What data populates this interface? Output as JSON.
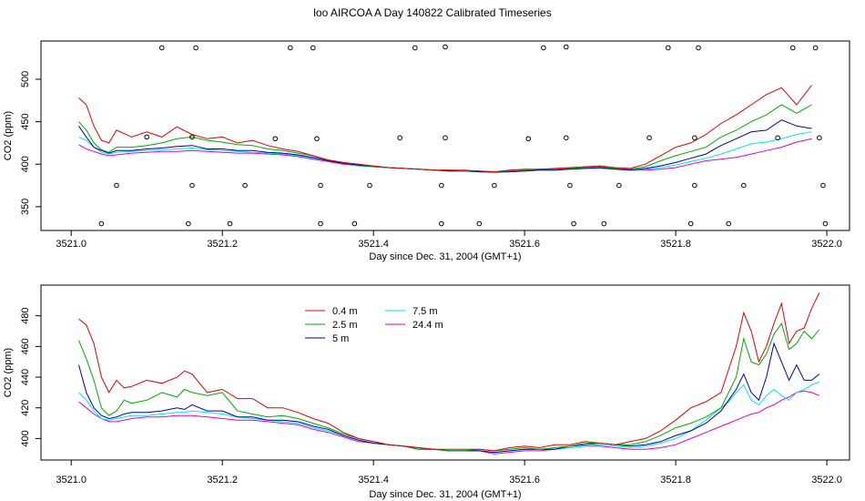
{
  "figure": {
    "title": "loo AIRCOA A  Day 140822  Calibrated Timeseries"
  },
  "colors": {
    "0.4 m": "#dd0000",
    "2.5 m": "#00aa00",
    "5 m": "#0000aa",
    "7.5 m": "#00e5ee",
    "24.4 m": "#dd00dd"
  },
  "chart_data": [
    {
      "type": "line",
      "xlabel": "Day since Dec. 31, 2004 (GMT+1)",
      "ylabel": "CO2 (ppm)",
      "xlim": [
        3520.96,
        3522.03
      ],
      "ylim": [
        322,
        545
      ],
      "x_ticks": [
        3521.0,
        3521.2,
        3521.4,
        3521.6,
        3521.8,
        3522.0
      ],
      "x_tick_labels": [
        "3521.0",
        "3521.2",
        "3521.4",
        "3521.6",
        "3521.8",
        "3522.0"
      ],
      "y_ticks": [
        350,
        400,
        450,
        500
      ],
      "y_tick_labels": [
        "350",
        "400",
        "450",
        "500"
      ],
      "legend": "none",
      "grid": false,
      "markers_open_circles": [
        [
          3521.04,
          330
        ],
        [
          3521.06,
          375
        ],
        [
          3521.1,
          432
        ],
        [
          3521.12,
          537
        ],
        [
          3521.155,
          330
        ],
        [
          3521.16,
          375
        ],
        [
          3521.16,
          432
        ],
        [
          3521.165,
          537
        ],
        [
          3521.21,
          330
        ],
        [
          3521.23,
          375
        ],
        [
          3521.27,
          430
        ],
        [
          3521.29,
          537
        ],
        [
          3521.32,
          537
        ],
        [
          3521.325,
          430
        ],
        [
          3521.33,
          375
        ],
        [
          3521.33,
          330
        ],
        [
          3521.375,
          330
        ],
        [
          3521.395,
          375
        ],
        [
          3521.435,
          431
        ],
        [
          3521.455,
          537
        ],
        [
          3521.49,
          330
        ],
        [
          3521.49,
          375
        ],
        [
          3521.495,
          431
        ],
        [
          3521.495,
          538
        ],
        [
          3521.54,
          330
        ],
        [
          3521.56,
          375
        ],
        [
          3521.605,
          430
        ],
        [
          3521.625,
          537
        ],
        [
          3521.655,
          538
        ],
        [
          3521.655,
          431
        ],
        [
          3521.66,
          375
        ],
        [
          3521.665,
          330
        ],
        [
          3521.705,
          330
        ],
        [
          3521.725,
          375
        ],
        [
          3521.765,
          431
        ],
        [
          3521.79,
          537
        ],
        [
          3521.82,
          330
        ],
        [
          3521.825,
          375
        ],
        [
          3521.825,
          431
        ],
        [
          3521.83,
          537
        ],
        [
          3521.87,
          330
        ],
        [
          3521.89,
          375
        ],
        [
          3521.935,
          431
        ],
        [
          3521.955,
          537
        ],
        [
          3521.985,
          537
        ],
        [
          3521.99,
          431
        ],
        [
          3521.995,
          375
        ],
        [
          3521.998,
          330
        ]
      ],
      "x": [
        3521.01,
        3521.02,
        3521.03,
        3521.04,
        3521.05,
        3521.06,
        3521.08,
        3521.1,
        3521.12,
        3521.14,
        3521.16,
        3521.18,
        3521.2,
        3521.22,
        3521.24,
        3521.26,
        3521.28,
        3521.3,
        3521.32,
        3521.34,
        3521.36,
        3521.38,
        3521.4,
        3521.42,
        3521.44,
        3521.46,
        3521.48,
        3521.5,
        3521.52,
        3521.54,
        3521.56,
        3521.58,
        3521.6,
        3521.62,
        3521.64,
        3521.66,
        3521.68,
        3521.7,
        3521.72,
        3521.74,
        3521.76,
        3521.78,
        3521.8,
        3521.82,
        3521.84,
        3521.86,
        3521.88,
        3521.9,
        3521.92,
        3521.94,
        3521.96,
        3521.98
      ],
      "series": [
        {
          "name": "0.4 m",
          "values": [
            478,
            470,
            445,
            428,
            425,
            440,
            432,
            438,
            432,
            444,
            435,
            430,
            432,
            425,
            428,
            422,
            418,
            415,
            410,
            405,
            402,
            400,
            398,
            396,
            395,
            394,
            393,
            393,
            393,
            392,
            391,
            393,
            394,
            394,
            395,
            396,
            397,
            398,
            396,
            395,
            400,
            410,
            420,
            425,
            435,
            448,
            458,
            470,
            482,
            490,
            470,
            493
          ]
        },
        {
          "name": "2.5 m",
          "values": [
            450,
            440,
            425,
            417,
            414,
            420,
            420,
            422,
            425,
            430,
            432,
            428,
            426,
            423,
            422,
            418,
            416,
            413,
            410,
            405,
            402,
            400,
            397,
            396,
            395,
            394,
            393,
            393,
            392,
            392,
            391,
            392,
            393,
            394,
            394,
            395,
            396,
            397,
            395,
            394,
            397,
            404,
            410,
            415,
            420,
            432,
            440,
            450,
            458,
            470,
            460,
            470
          ]
        },
        {
          "name": "5 m",
          "values": [
            445,
            432,
            420,
            416,
            413,
            416,
            416,
            418,
            419,
            421,
            422,
            418,
            418,
            416,
            416,
            414,
            413,
            411,
            408,
            404,
            401,
            399,
            397,
            396,
            395,
            394,
            393,
            392,
            392,
            391,
            391,
            391,
            392,
            393,
            393,
            394,
            395,
            396,
            394,
            393,
            395,
            398,
            402,
            407,
            412,
            422,
            430,
            438,
            440,
            452,
            445,
            442
          ]
        },
        {
          "name": "7.5 m",
          "values": [
            432,
            428,
            420,
            414,
            412,
            414,
            415,
            416,
            417,
            418,
            419,
            417,
            416,
            415,
            414,
            413,
            412,
            410,
            407,
            404,
            401,
            398,
            397,
            396,
            395,
            394,
            393,
            392,
            392,
            391,
            390,
            391,
            392,
            393,
            393,
            394,
            395,
            395,
            394,
            393,
            394,
            396,
            399,
            403,
            407,
            412,
            418,
            424,
            426,
            430,
            435,
            438
          ]
        },
        {
          "name": "24.4 m",
          "values": [
            423,
            418,
            415,
            412,
            410,
            411,
            413,
            414,
            415,
            415,
            416,
            415,
            414,
            413,
            413,
            412,
            411,
            409,
            406,
            403,
            400,
            398,
            397,
            396,
            395,
            394,
            393,
            392,
            392,
            391,
            390,
            391,
            392,
            393,
            393,
            394,
            395,
            395,
            394,
            393,
            393,
            394,
            396,
            400,
            404,
            406,
            408,
            412,
            416,
            420,
            426,
            430
          ]
        }
      ]
    },
    {
      "type": "line",
      "xlabel": "Day since Dec. 31, 2004 (GMT+1)",
      "ylabel": "CO2 (ppm)",
      "xlim": [
        3520.96,
        3522.03
      ],
      "ylim": [
        386,
        500
      ],
      "x_ticks": [
        3521.0,
        3521.2,
        3521.4,
        3521.6,
        3521.8,
        3522.0
      ],
      "x_tick_labels": [
        "3521.0",
        "3521.2",
        "3521.4",
        "3521.6",
        "3521.8",
        "3522.0"
      ],
      "y_ticks": [
        400,
        420,
        440,
        460,
        480
      ],
      "y_tick_labels": [
        "400",
        "420",
        "440",
        "460",
        "480"
      ],
      "legend": "top-left",
      "grid": false,
      "x": [
        3521.01,
        3521.02,
        3521.03,
        3521.04,
        3521.05,
        3521.06,
        3521.07,
        3521.08,
        3521.1,
        3521.12,
        3521.14,
        3521.15,
        3521.16,
        3521.18,
        3521.2,
        3521.22,
        3521.24,
        3521.26,
        3521.28,
        3521.3,
        3521.32,
        3521.34,
        3521.36,
        3521.38,
        3521.4,
        3521.42,
        3521.44,
        3521.46,
        3521.48,
        3521.5,
        3521.52,
        3521.54,
        3521.56,
        3521.58,
        3521.6,
        3521.62,
        3521.64,
        3521.66,
        3521.68,
        3521.7,
        3521.72,
        3521.74,
        3521.76,
        3521.78,
        3521.8,
        3521.82,
        3521.84,
        3521.86,
        3521.87,
        3521.88,
        3521.89,
        3521.9,
        3521.91,
        3521.92,
        3521.93,
        3521.94,
        3521.95,
        3521.96,
        3521.97,
        3521.98,
        3521.99
      ],
      "series": [
        {
          "name": "0.4 m",
          "values": [
            478,
            474,
            462,
            440,
            430,
            438,
            433,
            434,
            438,
            436,
            440,
            444,
            442,
            430,
            432,
            426,
            426,
            420,
            420,
            417,
            413,
            410,
            404,
            400,
            398,
            396,
            395,
            394,
            393,
            393,
            393,
            393,
            392,
            394,
            395,
            394,
            396,
            396,
            398,
            397,
            396,
            398,
            400,
            405,
            412,
            420,
            424,
            430,
            445,
            460,
            482,
            470,
            450,
            460,
            475,
            488,
            462,
            470,
            472,
            485,
            495
          ]
        },
        {
          "name": "2.5 m",
          "values": [
            464,
            452,
            438,
            420,
            415,
            418,
            425,
            423,
            425,
            430,
            427,
            432,
            430,
            428,
            430,
            418,
            416,
            414,
            415,
            413,
            410,
            407,
            403,
            400,
            398,
            396,
            395,
            393,
            393,
            392,
            392,
            393,
            392,
            393,
            394,
            393,
            394,
            395,
            397,
            397,
            396,
            396,
            398,
            402,
            407,
            410,
            414,
            420,
            430,
            440,
            465,
            450,
            448,
            455,
            468,
            475,
            458,
            462,
            470,
            465,
            471
          ]
        },
        {
          "name": "5 m",
          "values": [
            448,
            430,
            420,
            415,
            413,
            414,
            416,
            417,
            417,
            418,
            420,
            419,
            422,
            418,
            418,
            414,
            414,
            412,
            412,
            411,
            408,
            406,
            402,
            399,
            397,
            396,
            395,
            393,
            393,
            392,
            392,
            392,
            391,
            392,
            393,
            393,
            393,
            395,
            396,
            397,
            396,
            395,
            396,
            398,
            402,
            405,
            410,
            418,
            425,
            432,
            442,
            430,
            425,
            440,
            462,
            450,
            438,
            448,
            438,
            438,
            442
          ]
        },
        {
          "name": "7.5 m",
          "values": [
            430,
            425,
            418,
            413,
            412,
            413,
            414,
            415,
            415,
            416,
            417,
            417,
            418,
            417,
            416,
            414,
            413,
            412,
            411,
            410,
            407,
            405,
            402,
            399,
            397,
            396,
            395,
            394,
            393,
            392,
            392,
            392,
            391,
            392,
            393,
            393,
            393,
            394,
            395,
            396,
            395,
            394,
            395,
            397,
            400,
            405,
            412,
            420,
            424,
            430,
            435,
            425,
            422,
            428,
            432,
            428,
            425,
            430,
            432,
            435,
            437
          ]
        },
        {
          "name": "24.4 m",
          "values": [
            424,
            420,
            416,
            413,
            411,
            411,
            412,
            413,
            414,
            414,
            415,
            415,
            415,
            414,
            413,
            412,
            412,
            411,
            410,
            409,
            406,
            404,
            401,
            398,
            397,
            396,
            395,
            394,
            393,
            392,
            392,
            392,
            390,
            391,
            392,
            392,
            393,
            394,
            395,
            395,
            394,
            393,
            393,
            394,
            396,
            400,
            404,
            408,
            410,
            412,
            414,
            416,
            417,
            420,
            422,
            425,
            427,
            430,
            431,
            430,
            428
          ]
        }
      ]
    }
  ]
}
